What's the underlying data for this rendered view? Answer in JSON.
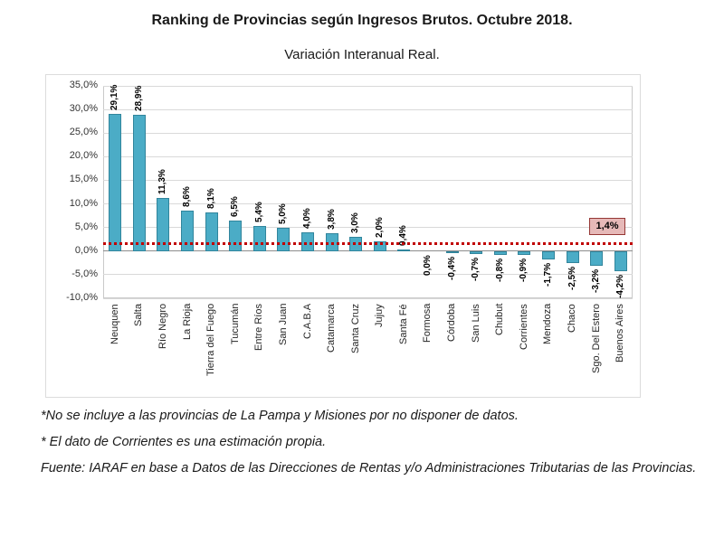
{
  "title": "Ranking de Provincias según Ingresos Brutos. Octubre 2018.",
  "subtitle": "Variación Interanual Real.",
  "footnotes": [
    "*No se incluye a las provincias de La Pampa y Misiones por no disponer de datos.",
    "* El dato de Corrientes es una estimación propia.",
    "Fuente: IARAF en base a Datos de las Direcciones de Rentas y/o Administraciones Tributarias de las Provincias."
  ],
  "chart_data": {
    "type": "bar",
    "title": "Ranking de Provincias según Ingresos Brutos. Octubre 2018.",
    "subtitle": "Variación Interanual Real.",
    "categories": [
      "Neuquen",
      "Salta",
      "Río Negro",
      "La Rioja",
      "Tierra del Fuego",
      "Tucumán",
      "Entre Ríos",
      "San Juan",
      "C.A.B.A",
      "Catamarca",
      "Santa Cruz",
      "Jujuy",
      "Santa Fé",
      "Formosa",
      "Córdoba",
      "San Luis",
      "Chubut",
      "Corrientes",
      "Mendoza",
      "Chaco",
      "Sgo. Del Estero",
      "Buenos Aires"
    ],
    "values": [
      29.1,
      28.9,
      11.3,
      8.6,
      8.1,
      6.5,
      5.4,
      5.0,
      4.0,
      3.8,
      3.0,
      2.0,
      0.4,
      0.0,
      -0.4,
      -0.7,
      -0.8,
      -0.9,
      -1.7,
      -2.5,
      -3.2,
      -4.2
    ],
    "value_labels": [
      "29,1%",
      "28,9%",
      "11,3%",
      "8,6%",
      "8,1%",
      "6,5%",
      "5,4%",
      "5,0%",
      "4,0%",
      "3,8%",
      "3,0%",
      "2,0%",
      "0,4%",
      "0,0%",
      "-0,4%",
      "-0,7%",
      "-0,8%",
      "-0,9%",
      "-1,7%",
      "-2,5%",
      "-3,2%",
      "-4,2%"
    ],
    "ylim": [
      -10,
      35
    ],
    "ytick_step": 5,
    "ytick_labels": [
      "35,0%",
      "30,0%",
      "25,0%",
      "20,0%",
      "15,0%",
      "10,0%",
      "5,0%",
      "0,0%",
      "-5,0%",
      "-10,0%"
    ],
    "grid": true,
    "legend": "none",
    "reference_line": {
      "value": 1.4,
      "label": "1,4%"
    },
    "colors": {
      "bar_fill": "#4BACC6",
      "bar_border": "#31859C",
      "reference_line": "#C00000",
      "reference_label_bg": "#E6B9B8",
      "reference_label_border": "#953735",
      "gridline": "#D9D9D9",
      "zero_axis": "#8C8C8C"
    }
  }
}
